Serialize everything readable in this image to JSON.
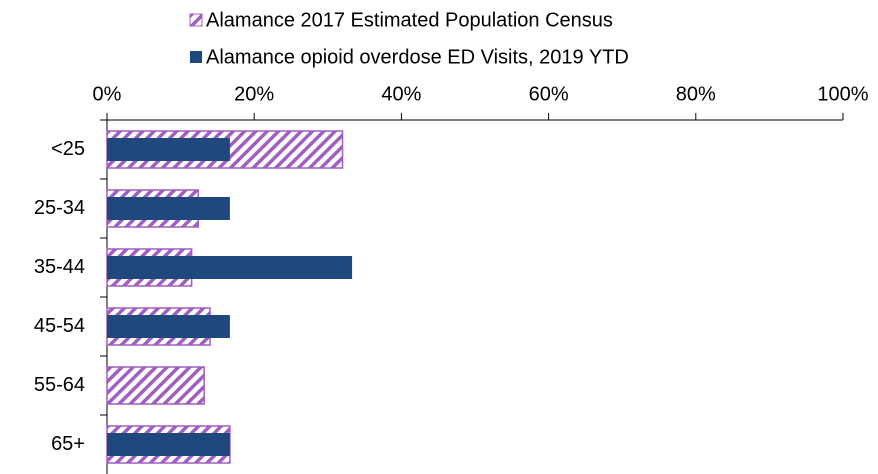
{
  "chart_data": {
    "type": "hbar",
    "categories": [
      "<25",
      "25-34",
      "35-44",
      "45-54",
      "55-64",
      "65+"
    ],
    "series": [
      {
        "name": "Alamance 2017 Estimated Population Census",
        "color": "#a05fc0",
        "hatch": true,
        "values": [
          32,
          12.4,
          11.5,
          14,
          13.2,
          16.7
        ]
      },
      {
        "name": "Alamance opioid overdose ED Visits, 2019 YTD",
        "color": "#1f497d",
        "hatch": false,
        "values": [
          16.7,
          16.7,
          33.3,
          16.7,
          0,
          16.7
        ]
      }
    ],
    "xlim": [
      0,
      100
    ],
    "xticks": [
      {
        "value": 0,
        "label": "0%"
      },
      {
        "value": 20,
        "label": "20%"
      },
      {
        "value": 40,
        "label": "40%"
      },
      {
        "value": 60,
        "label": "60%"
      },
      {
        "value": 80,
        "label": "80%"
      },
      {
        "value": 100,
        "label": "100%"
      }
    ],
    "legend": "top"
  }
}
